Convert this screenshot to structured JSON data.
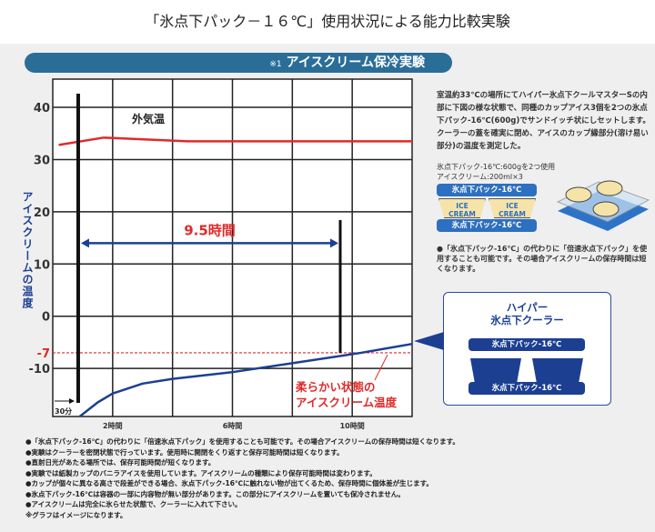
{
  "header": {
    "title": "「氷点下パック－１６℃」使用状況による能力比較実験"
  },
  "banner": {
    "prefix": "※1",
    "title": "アイスクリーム保冷実験"
  },
  "description": "室温約33℃の場所にてハイパー氷点下クールマスターSの内部に下図の様な状態で、同種のカップアイス3個を2つの氷点下パック-16℃(600g)でサンドイッチ状にしセットします。クーラーの蓋を確実に閉め、アイスのカップ縁部分(溶け易い部分)の温度を測定した。",
  "spec": [
    "氷点下パック-16℃:600gを2つ使用",
    "アイスクリーム:200ml×3"
  ],
  "diagram": {
    "pack_label": "氷点下パック-16℃",
    "cup_label": [
      "ICE",
      "CREAM"
    ]
  },
  "note_side": "●「氷点下パック-16℃」の代わりに「倍速氷点下パック」を使用することも可能です。その場合アイスクリームの保存時間は短くなります。",
  "cooler": {
    "title_line1": "ハイパー",
    "title_line2": "氷点下クーラー",
    "pack_label": "氷点下パック-16℃"
  },
  "notes": [
    "●「氷点下パック-16℃」の代わりに「倍速氷点下パック」を使用することも可能です。その場合アイスクリームの保存時間は短くなります。",
    "●実験はクーラーを密閉状態で行っています。使用時に開閉をくり返すと保存可能時間は短くなります。",
    "●直射日光があたる場所では、保存可能時間が短くなります。",
    "●実験では紙製カップのバニラアイスを使用しています。アイスクリームの種類により保存可能時間は変わります。",
    "●カップが個々に異なる高さで段差ができる場合、氷点下パック-16℃に触れない物が出てくるため、保存時間に個体差が生じます。",
    "●氷点下パック-16℃は容器の一部に内容物が無い部分があります。この部分にアイスクリームを置いても保冷されません。",
    "●アイスクリームは完全に氷らせた状態で、クーラーに入れて下さい。",
    "※グラフはイメージになります。"
  ],
  "chart_data": {
    "type": "line",
    "ylabel": "アイスクリームの温度",
    "xlim": [
      0,
      12
    ],
    "ylim": [
      -19.2,
      45.4
    ],
    "yticks": [
      40,
      30,
      20,
      10,
      0,
      -7,
      -10
    ],
    "xtick_labels": [
      {
        "x": 2,
        "label": "2時間"
      },
      {
        "x": 6,
        "label": "6時間"
      },
      {
        "x": 10,
        "label": "10時間"
      }
    ],
    "grid": true,
    "series": [
      {
        "name": "外気温",
        "color": "#e02a2a",
        "points": [
          [
            0.2,
            32.8
          ],
          [
            1.7,
            34.2
          ],
          [
            4.5,
            33.5
          ],
          [
            12,
            33.5
          ]
        ]
      },
      {
        "name": "柔らかい状態のアイスクリーム温度",
        "color": "#1c3f91",
        "points": [
          [
            0.9,
            -19.2
          ],
          [
            1.5,
            -16.5
          ],
          [
            2,
            -14.8
          ],
          [
            3,
            -12.9
          ],
          [
            4,
            -12
          ],
          [
            6,
            -10.7
          ],
          [
            8,
            -9
          ],
          [
            10.3,
            -7
          ],
          [
            12,
            -5.3
          ]
        ]
      }
    ],
    "threshold": {
      "y": -7,
      "color": "#e02a2a"
    },
    "markers": [
      {
        "x": 0.85,
        "label": "30分"
      },
      {
        "x": 9.6
      }
    ],
    "duration_label": "9.5時間",
    "duration_arrow": {
      "from": 0.85,
      "to": 9.6,
      "y": 14
    }
  }
}
